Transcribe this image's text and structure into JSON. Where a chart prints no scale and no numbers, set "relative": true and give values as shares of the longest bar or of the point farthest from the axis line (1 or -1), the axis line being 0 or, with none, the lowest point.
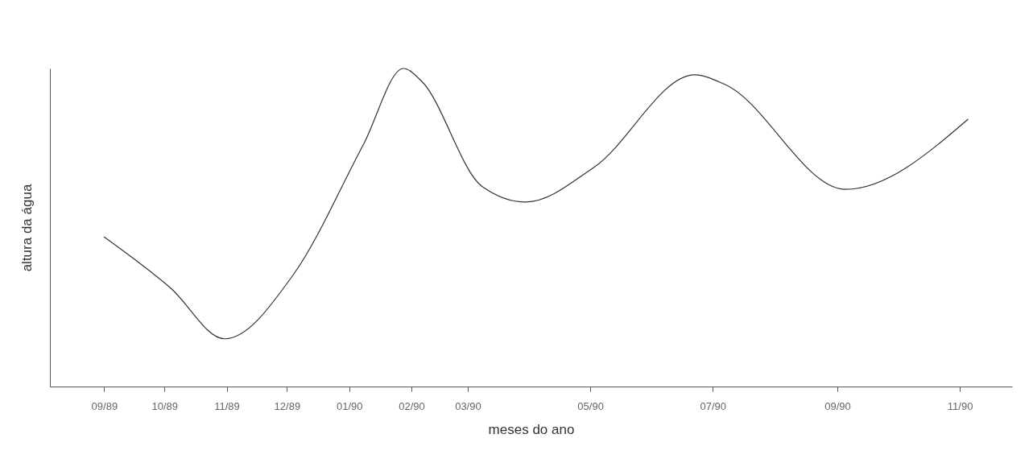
{
  "chart_data": {
    "type": "line",
    "relative": true,
    "xlabel": "meses do ano",
    "ylabel": "altura da água",
    "marker": "none",
    "line_style": "solid",
    "grid": false,
    "xlim": [
      "1989-08-05",
      "1990-11-27"
    ],
    "xticks": [
      {
        "value": "1989-09-01",
        "label": "09/89"
      },
      {
        "value": "1989-10-01",
        "label": "10/89"
      },
      {
        "value": "1989-11-01",
        "label": "11/89"
      },
      {
        "value": "1989-12-01",
        "label": "12/89"
      },
      {
        "value": "1990-01-01",
        "label": "01/90"
      },
      {
        "value": "1990-02-01",
        "label": "02/90"
      },
      {
        "value": "1990-03-01",
        "label": "03/90"
      },
      {
        "value": "1990-05-01",
        "label": "05/90"
      },
      {
        "value": "1990-07-01",
        "label": "07/90"
      },
      {
        "value": "1990-09-01",
        "label": "09/90"
      },
      {
        "value": "1990-11-01",
        "label": "11/90"
      }
    ],
    "x": [
      "1989-09-01",
      "1989-10-04",
      "1989-10-31",
      "1989-12-04",
      "1990-01-08",
      "1990-01-28",
      "1990-02-06",
      "1990-03-08",
      "1990-03-30",
      "1990-05-03",
      "1990-06-22",
      "1990-07-07",
      "1990-09-05",
      "1990-11-05"
    ],
    "series": [
      {
        "color": "#333333",
        "values": [
          0.47,
          0.31,
          0.15,
          0.35,
          0.76,
          1.0,
          0.96,
          0.63,
          0.58,
          0.69,
          0.98,
          0.95,
          0.62,
          0.84
        ]
      }
    ]
  }
}
